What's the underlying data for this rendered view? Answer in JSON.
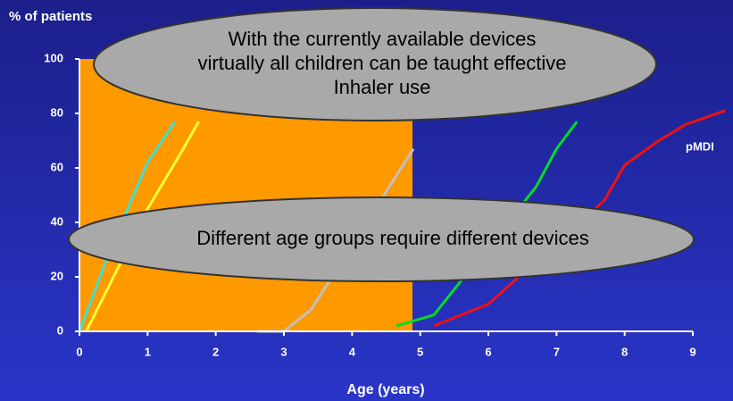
{
  "chart_data": {
    "type": "line",
    "ylabel": "% of patients",
    "xlabel": "Age (years)",
    "xlim": [
      0,
      9
    ],
    "ylim": [
      0,
      100
    ],
    "xticks": [
      0,
      1,
      2,
      3,
      4,
      5,
      6,
      7,
      8,
      9
    ],
    "yticks": [
      0,
      20,
      40,
      60,
      80,
      100
    ],
    "series": [
      {
        "color": "#40e0d0",
        "x": [
          0,
          0.5,
          1,
          1.4
        ],
        "values": [
          0,
          33,
          62,
          77
        ]
      },
      {
        "color": "#ffff33",
        "x": [
          0.1,
          1,
          1.5,
          1.75
        ],
        "values": [
          0,
          45,
          66,
          77
        ]
      },
      {
        "color": "#c0c0c0",
        "x": [
          2.6,
          3,
          3.4,
          4.9
        ],
        "values": [
          0,
          0,
          8,
          67
        ]
      },
      {
        "color": "#00dd22",
        "x": [
          4.65,
          5.2,
          6.7,
          7.0,
          7.3
        ],
        "values": [
          2,
          6,
          53,
          67,
          77
        ]
      },
      {
        "name": "pMDI",
        "color": "#ee1111",
        "x": [
          5.2,
          6.0,
          7.7,
          8.0,
          8.5,
          8.9,
          9.47
        ],
        "values": [
          2,
          10,
          48,
          61,
          70,
          76,
          81
        ]
      }
    ],
    "callouts": [
      [
        "With the currently available devices",
        "virtually all children can be taught effective",
        "Inhaler use"
      ],
      [
        "Different age groups require different devices"
      ]
    ]
  }
}
